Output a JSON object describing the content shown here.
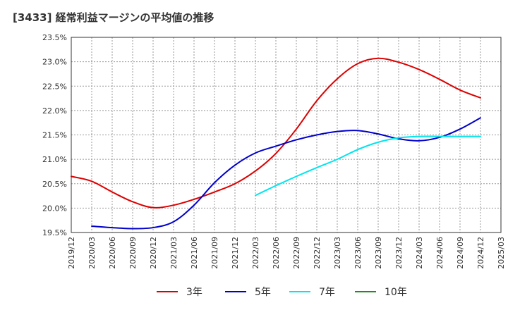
{
  "title": "[3433]  経常利益マージンの平均値の推移",
  "chart_data": {
    "type": "line",
    "title": "[3433]  経常利益マージンの平均値の推移",
    "xlabel": "",
    "ylabel": "",
    "ylim": [
      19.5,
      23.5
    ],
    "y_ticks": [
      "19.5%",
      "20.0%",
      "20.5%",
      "21.0%",
      "21.5%",
      "22.0%",
      "22.5%",
      "23.0%",
      "23.5%"
    ],
    "x_ticks": [
      "2019/12",
      "2020/03",
      "2020/06",
      "2020/09",
      "2020/12",
      "2021/03",
      "2021/06",
      "2021/09",
      "2021/12",
      "2022/03",
      "2022/06",
      "2022/09",
      "2022/12",
      "2023/03",
      "2023/06",
      "2023/09",
      "2023/12",
      "2024/03",
      "2024/06",
      "2024/09",
      "2024/12",
      "2025/03"
    ],
    "grid": true,
    "legend_position": "bottom",
    "series": [
      {
        "name": "3年",
        "color": "#dd0000",
        "x": [
          "2019/12",
          "2020/03",
          "2020/06",
          "2020/09",
          "2020/12",
          "2021/03",
          "2021/06",
          "2021/09",
          "2021/12",
          "2022/03",
          "2022/06",
          "2022/09",
          "2022/12",
          "2023/03",
          "2023/06",
          "2023/09",
          "2023/12",
          "2024/03",
          "2024/06",
          "2024/09",
          "2024/12"
        ],
        "values": [
          20.65,
          20.55,
          20.33,
          20.13,
          20.01,
          20.06,
          20.18,
          20.33,
          20.5,
          20.76,
          21.12,
          21.62,
          22.2,
          22.65,
          22.96,
          23.07,
          22.99,
          22.84,
          22.64,
          22.42,
          22.26
        ]
      },
      {
        "name": "5年",
        "color": "#0000cc",
        "x": [
          "2020/03",
          "2020/06",
          "2020/09",
          "2020/12",
          "2021/03",
          "2021/06",
          "2021/09",
          "2021/12",
          "2022/03",
          "2022/06",
          "2022/09",
          "2022/12",
          "2023/03",
          "2023/06",
          "2023/09",
          "2023/12",
          "2024/03",
          "2024/06",
          "2024/09",
          "2024/12"
        ],
        "values": [
          19.63,
          19.6,
          19.58,
          19.6,
          19.72,
          20.06,
          20.52,
          20.88,
          21.13,
          21.27,
          21.4,
          21.5,
          21.57,
          21.59,
          21.52,
          21.42,
          21.38,
          21.45,
          21.62,
          21.85
        ]
      },
      {
        "name": "7年",
        "color": "#00e5ee",
        "x": [
          "2022/03",
          "2022/06",
          "2022/09",
          "2022/12",
          "2023/03",
          "2023/06",
          "2023/09",
          "2023/12",
          "2024/03",
          "2024/06",
          "2024/09",
          "2024/12"
        ],
        "values": [
          20.26,
          20.46,
          20.65,
          20.83,
          21.0,
          21.2,
          21.35,
          21.44,
          21.47,
          21.47,
          21.47,
          21.47
        ]
      },
      {
        "name": "10年",
        "color": "#228b22",
        "x": [],
        "values": []
      }
    ]
  }
}
